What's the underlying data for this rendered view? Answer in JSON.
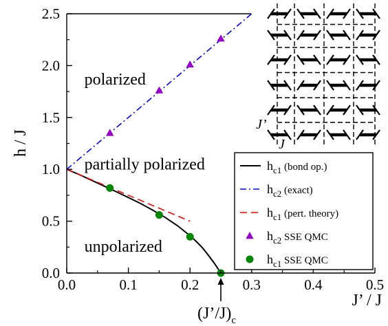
{
  "chart_data": {
    "type": "line",
    "xlabel": "J’ / J",
    "ylabel": "h / J",
    "xlim": [
      0.0,
      0.5
    ],
    "ylim": [
      0.0,
      2.5
    ],
    "xticks": [
      "0.0",
      "0.1",
      "0.2",
      "0.3",
      "0.4",
      "0.5"
    ],
    "yticks": [
      "0.0",
      "0.5",
      "1.0",
      "1.5",
      "2.0",
      "2.5"
    ],
    "xtick_values": [
      0.0,
      0.1,
      0.2,
      0.3,
      0.4,
      0.5
    ],
    "ytick_values": [
      0.0,
      0.5,
      1.0,
      1.5,
      2.0,
      2.5
    ],
    "critical_point": {
      "x": 0.25,
      "label_main": "(J’/J)",
      "label_sub": "c"
    },
    "regions": [
      {
        "label": "polarized",
        "x": 0.013,
        "y": 1.87
      },
      {
        "label": "partially polarized",
        "x": 0.013,
        "y": 1.05
      },
      {
        "label": "unpolarized",
        "x": 0.013,
        "y": 0.26
      }
    ],
    "series": [
      {
        "name": "h_c1 (bond op.)",
        "legend_main": "h",
        "legend_sub": "c1",
        "legend_tail": " (bond op.)",
        "style": "solid",
        "color": "#000000",
        "x": [
          0.0,
          0.02,
          0.04,
          0.06,
          0.08,
          0.1,
          0.12,
          0.14,
          0.16,
          0.18,
          0.2,
          0.21,
          0.22,
          0.23,
          0.24,
          0.245,
          0.25
        ],
        "y": [
          1.0,
          0.95,
          0.895,
          0.84,
          0.785,
          0.728,
          0.67,
          0.605,
          0.535,
          0.455,
          0.36,
          0.305,
          0.245,
          0.17,
          0.09,
          0.045,
          0.0
        ]
      },
      {
        "name": "h_c2 (exact)",
        "legend_main": "h",
        "legend_sub": "c2",
        "legend_tail": " (exact)",
        "style": "dashdot",
        "color": "#0000ff",
        "x": [
          0.0,
          0.3
        ],
        "y": [
          1.0,
          2.5
        ]
      },
      {
        "name": "h_c1 (pert. theory)",
        "legend_main": "h",
        "legend_sub": "c1",
        "legend_tail": " (pert. theory)",
        "style": "dashed",
        "color": "#ff0000",
        "x": [
          0.0,
          0.2
        ],
        "y": [
          1.0,
          0.5
        ]
      },
      {
        "name": "h_c2 SSE QMC",
        "legend_main": "h",
        "legend_sub": "c2",
        "legend_tail": " SSE QMC",
        "style": "triangle",
        "color": "#9900cc",
        "x": [
          0.07,
          0.15,
          0.2,
          0.25
        ],
        "y": [
          1.35,
          1.76,
          2.01,
          2.26
        ]
      },
      {
        "name": "h_c1 SSE QMC",
        "legend_main": "h",
        "legend_sub": "c1",
        "legend_tail": " SSE QMC",
        "style": "circle",
        "color": "#008800",
        "x": [
          0.07,
          0.15,
          0.2,
          0.25
        ],
        "y": [
          0.82,
          0.56,
          0.35,
          0.0
        ]
      }
    ],
    "inset": {
      "label_interladder": "J’",
      "label_rung": "J"
    }
  }
}
